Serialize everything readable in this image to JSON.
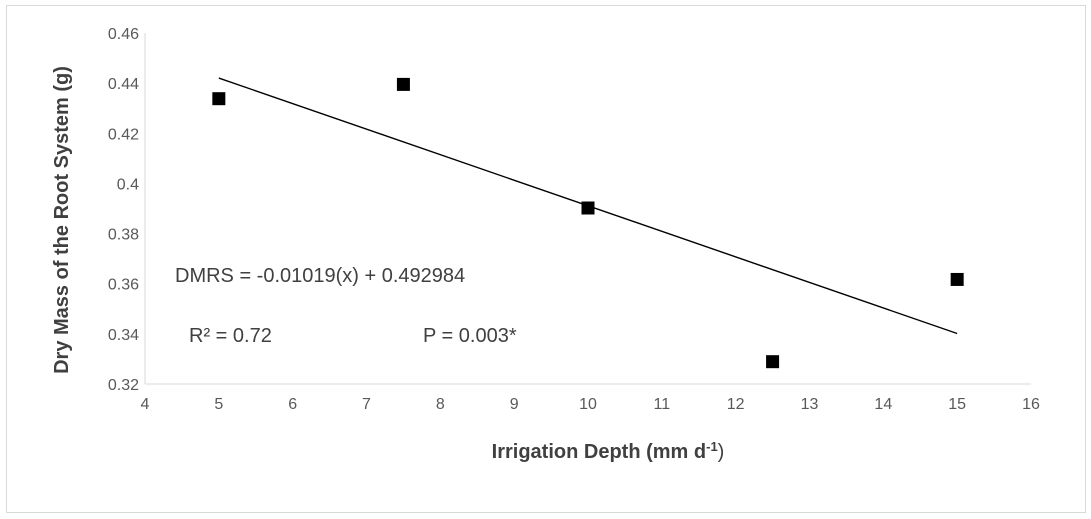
{
  "chart_data": {
    "type": "scatter",
    "xlabel": {
      "main": "Irrigation Depth (mm d",
      "sup": "-1",
      "close": ")"
    },
    "ylabel": "Dry Mass of the Root System  (g)",
    "xlim": [
      4,
      16
    ],
    "ylim": [
      0.32,
      0.46
    ],
    "x_ticks": [
      4,
      5,
      6,
      7,
      8,
      9,
      10,
      11,
      12,
      13,
      14,
      15,
      16
    ],
    "y_ticks": [
      0.32,
      0.34,
      0.36,
      0.38,
      0.4,
      0.42,
      0.44,
      0.46
    ],
    "y_tick_labels": [
      "0.32",
      "0.34",
      "0.36",
      "0.38",
      "0.4",
      "0.42",
      "0.44",
      "0.46"
    ],
    "points": [
      {
        "x": 5,
        "y": 0.4338
      },
      {
        "x": 7.5,
        "y": 0.4395
      },
      {
        "x": 10,
        "y": 0.3902
      },
      {
        "x": 12.5,
        "y": 0.3289
      },
      {
        "x": 15,
        "y": 0.3617
      }
    ],
    "trendline": {
      "slope": -0.01019,
      "intercept": 0.492984,
      "x_range": [
        5,
        15
      ]
    },
    "annotations": {
      "equation": "DMRS = -0.01019(x) + 0.492984",
      "r_squared": "R² = 0.72",
      "p_value": "P = 0.003*"
    },
    "grid": false,
    "legend": "none",
    "marker_color": "#000000",
    "line_color": "#000000",
    "axis_color": "#d9d9d9"
  }
}
